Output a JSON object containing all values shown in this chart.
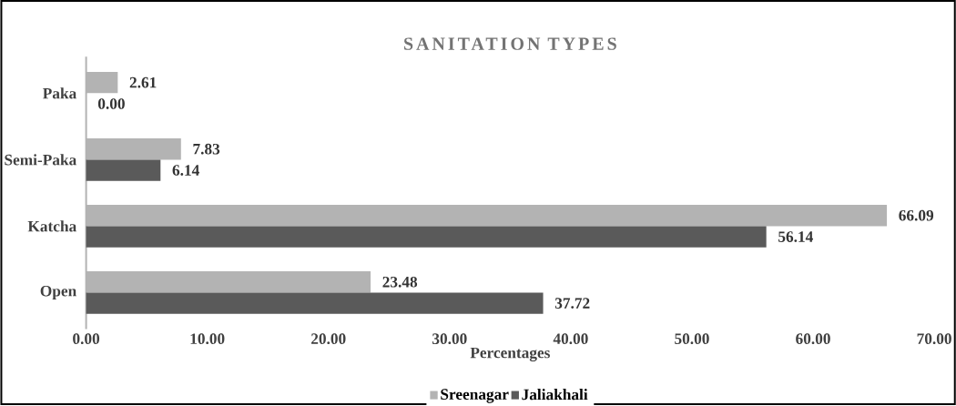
{
  "chart_data": {
    "type": "bar",
    "orientation": "horizontal",
    "title": "SANITATION TYPES",
    "xlabel": "Percentages",
    "categories": [
      "Paka",
      "Semi-Paka",
      "Katcha",
      "Open"
    ],
    "series": [
      {
        "name": "Sreenagar",
        "color": "#b3b3b3",
        "values": [
          2.61,
          7.83,
          66.09,
          23.48
        ],
        "value_labels": [
          "2.61",
          "7.83",
          "66.09",
          "23.48"
        ]
      },
      {
        "name": "Jaliakhali",
        "color": "#5a5a5a",
        "values": [
          0.0,
          6.14,
          56.14,
          37.72
        ],
        "value_labels": [
          "0.00",
          "6.14",
          "56.14",
          "37.72"
        ]
      }
    ],
    "xlim": [
      0,
      70
    ],
    "xticks": [
      {
        "value": 0,
        "label": "0.00"
      },
      {
        "value": 10,
        "label": "10.00"
      },
      {
        "value": 20,
        "label": "20.00"
      },
      {
        "value": 30,
        "label": "30.00"
      },
      {
        "value": 40,
        "label": "40.00"
      },
      {
        "value": 50,
        "label": "50.00"
      },
      {
        "value": 60,
        "label": "60.00"
      },
      {
        "value": 70,
        "label": "70.00"
      }
    ],
    "legend": "bottom",
    "grid": false
  }
}
